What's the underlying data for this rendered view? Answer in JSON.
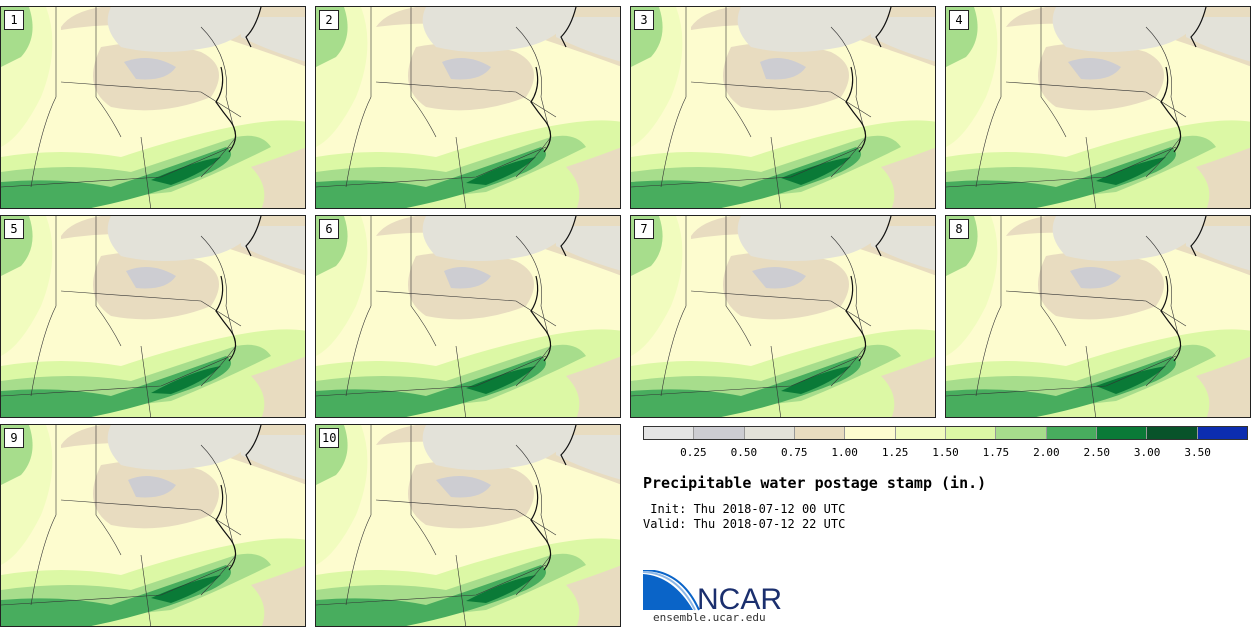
{
  "stamps": [
    {
      "label": "1"
    },
    {
      "label": "2"
    },
    {
      "label": "3"
    },
    {
      "label": "4"
    },
    {
      "label": "5"
    },
    {
      "label": "6"
    },
    {
      "label": "7"
    },
    {
      "label": "8"
    },
    {
      "label": "9"
    },
    {
      "label": "10"
    }
  ],
  "legend": {
    "ticks": [
      "0.25",
      "0.50",
      "0.75",
      "1.00",
      "1.25",
      "1.50",
      "1.75",
      "2.00",
      "2.50",
      "3.00",
      "3.50"
    ],
    "colors": [
      "#e4e4e4",
      "#cdcdd2",
      "#e3e2d9",
      "#e8dcc0",
      "#fdfccf",
      "#f1fcbe",
      "#dcf8a5",
      "#a7dd8c",
      "#48ad5e",
      "#0a7a37",
      "#08532a",
      "#0c2db0"
    ]
  },
  "title": "Precipitable water postage stamp (in.)",
  "init": " Init: Thu 2018-07-12 00 UTC",
  "valid": "Valid: Thu 2018-07-12 22 UTC",
  "logo": {
    "text": "NCAR",
    "url": "ensemble.ucar.edu",
    "color": "#0a64c8"
  }
}
